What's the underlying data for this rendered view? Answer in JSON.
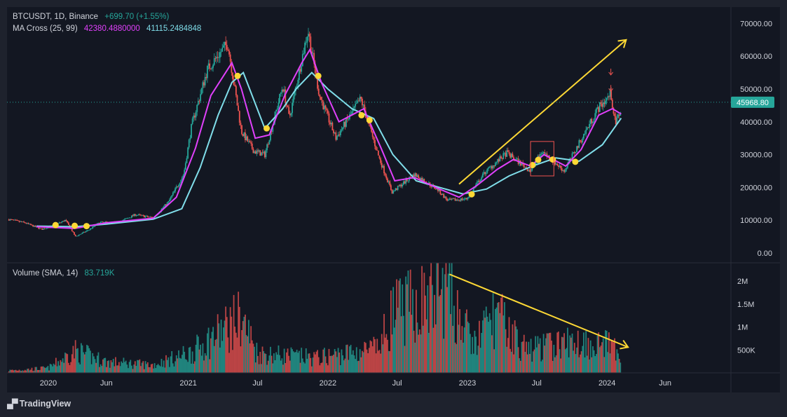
{
  "header": {
    "symbol": "BTCUSDT, 1D, Binance",
    "change": "+699.70 (+1.55%)",
    "ma_label": "MA Cross (25, 99)",
    "ma_fast_value": "42380.4880000",
    "ma_slow_value": "41115.2484848",
    "volume_label": "Volume (SMA, 14)",
    "volume_value": "83.719K"
  },
  "price_axis": {
    "ticks": [
      "70000.00",
      "60000.00",
      "50000.00",
      "40000.00",
      "30000.00",
      "20000.00",
      "10000.00",
      "0.00"
    ],
    "current_price": "45968.80"
  },
  "volume_axis": {
    "ticks": [
      "2M",
      "1.5M",
      "1M",
      "500K"
    ]
  },
  "time_axis": {
    "labels": [
      "2020",
      "Jun",
      "2021",
      "Jul",
      "2022",
      "Jul",
      "2023",
      "Jul",
      "2024",
      "Jun"
    ]
  },
  "brand": {
    "name": "TradingView"
  },
  "colors": {
    "background": "#131722",
    "frame": "#1e222d",
    "text": "#d1d4dc",
    "up": "#26a69a",
    "down": "#ef5350",
    "ma_fast": "#e040fb",
    "ma_slow": "#80deea",
    "annotation": "#fdd835",
    "price_tag": "#26a69a",
    "volume_label": "#26a69a"
  },
  "chart_data": {
    "type": "candlestick",
    "x_range": [
      "2019-09-15",
      "2024-11-20"
    ],
    "y_range": [
      -3000,
      75000
    ],
    "price_path": [
      [
        "2019-09-20",
        10200
      ],
      [
        "2019-11-01",
        9200
      ],
      [
        "2019-12-15",
        7200
      ],
      [
        "2020-01-20",
        8600
      ],
      [
        "2020-02-15",
        10000
      ],
      [
        "2020-03-12",
        5000
      ],
      [
        "2020-04-15",
        7000
      ],
      [
        "2020-05-15",
        9300
      ],
      [
        "2020-07-01",
        9200
      ],
      [
        "2020-08-15",
        11700
      ],
      [
        "2020-10-01",
        10700
      ],
      [
        "2020-11-10",
        15500
      ],
      [
        "2020-12-20",
        24000
      ],
      [
        "2021-01-10",
        39000
      ],
      [
        "2021-02-20",
        56000
      ],
      [
        "2021-04-14",
        64000
      ],
      [
        "2021-05-20",
        37000
      ],
      [
        "2021-06-22",
        31000
      ],
      [
        "2021-07-20",
        30000
      ],
      [
        "2021-09-05",
        51000
      ],
      [
        "2021-09-22",
        41000
      ],
      [
        "2021-11-10",
        68000
      ],
      [
        "2021-12-10",
        48000
      ],
      [
        "2022-01-22",
        35000
      ],
      [
        "2022-03-28",
        47000
      ],
      [
        "2022-05-15",
        29000
      ],
      [
        "2022-06-18",
        18500
      ],
      [
        "2022-08-15",
        24000
      ],
      [
        "2022-10-15",
        19300
      ],
      [
        "2022-11-10",
        16000
      ],
      [
        "2022-12-30",
        16500
      ],
      [
        "2023-02-15",
        24500
      ],
      [
        "2023-04-14",
        30500
      ],
      [
        "2023-06-15",
        25000
      ],
      [
        "2023-07-15",
        31000
      ],
      [
        "2023-09-11",
        25000
      ],
      [
        "2023-10-25",
        34500
      ],
      [
        "2023-12-08",
        44000
      ],
      [
        "2024-01-11",
        48500
      ],
      [
        "2024-01-23",
        39000
      ],
      [
        "2024-02-07",
        44300
      ]
    ],
    "ma_fast_path": [
      [
        "2019-12-01",
        8000
      ],
      [
        "2020-03-10",
        7500
      ],
      [
        "2020-06-01",
        9200
      ],
      [
        "2020-10-01",
        10600
      ],
      [
        "2020-12-01",
        17000
      ],
      [
        "2021-01-20",
        32000
      ],
      [
        "2021-03-01",
        48000
      ],
      [
        "2021-04-25",
        58000
      ],
      [
        "2021-05-20",
        50000
      ],
      [
        "2021-06-25",
        35000
      ],
      [
        "2021-08-01",
        36000
      ],
      [
        "2021-09-10",
        48000
      ],
      [
        "2021-10-25",
        58000
      ],
      [
        "2021-11-15",
        62000
      ],
      [
        "2021-12-15",
        52000
      ],
      [
        "2022-01-30",
        40000
      ],
      [
        "2022-04-05",
        44000
      ],
      [
        "2022-05-20",
        32000
      ],
      [
        "2022-06-25",
        22000
      ],
      [
        "2022-08-15",
        23000
      ],
      [
        "2022-10-20",
        19500
      ],
      [
        "2022-12-10",
        17000
      ],
      [
        "2023-01-25",
        20500
      ],
      [
        "2023-03-20",
        25500
      ],
      [
        "2023-05-01",
        28500
      ],
      [
        "2023-06-15",
        26500
      ],
      [
        "2023-07-20",
        30000
      ],
      [
        "2023-09-15",
        26500
      ],
      [
        "2023-10-25",
        31500
      ],
      [
        "2023-12-10",
        42000
      ],
      [
        "2024-01-15",
        44000
      ],
      [
        "2024-02-07",
        42380
      ]
    ],
    "ma_slow_path": [
      [
        "2019-12-01",
        8200
      ],
      [
        "2020-03-10",
        8000
      ],
      [
        "2020-06-01",
        8800
      ],
      [
        "2020-10-01",
        10300
      ],
      [
        "2020-12-15",
        13500
      ],
      [
        "2021-02-01",
        26000
      ],
      [
        "2021-03-20",
        42000
      ],
      [
        "2021-04-25",
        52000
      ],
      [
        "2021-05-25",
        55000
      ],
      [
        "2021-07-20",
        38000
      ],
      [
        "2021-09-05",
        44000
      ],
      [
        "2021-10-10",
        50000
      ],
      [
        "2021-11-20",
        55000
      ],
      [
        "2022-01-01",
        50000
      ],
      [
        "2022-03-05",
        44000
      ],
      [
        "2022-05-01",
        41000
      ],
      [
        "2022-06-20",
        30000
      ],
      [
        "2022-08-20",
        22000
      ],
      [
        "2022-10-20",
        20000
      ],
      [
        "2022-12-20",
        18000
      ],
      [
        "2023-02-20",
        19500
      ],
      [
        "2023-04-20",
        23500
      ],
      [
        "2023-06-20",
        26500
      ],
      [
        "2023-08-20",
        29000
      ],
      [
        "2023-10-20",
        28000
      ],
      [
        "2023-12-20",
        33000
      ],
      [
        "2024-02-07",
        41115
      ]
    ],
    "cross_points": [
      [
        "2020-01-20",
        8500
      ],
      [
        "2020-03-10",
        8300
      ],
      [
        "2020-04-10",
        8200
      ],
      [
        "2021-05-10",
        54000
      ],
      [
        "2021-07-25",
        38000
      ],
      [
        "2021-12-07",
        54000
      ],
      [
        "2022-03-30",
        42000
      ],
      [
        "2022-04-20",
        40500
      ],
      [
        "2023-01-12",
        17900
      ],
      [
        "2023-06-20",
        26800
      ],
      [
        "2023-07-05",
        28400
      ],
      [
        "2023-08-12",
        28500
      ],
      [
        "2023-10-10",
        27800
      ]
    ],
    "highlight_box": {
      "x": [
        "2023-06-15",
        "2023-08-15"
      ],
      "y": [
        23500,
        34000
      ]
    },
    "down_arrows": [
      [
        "2024-01-11",
        54500
      ],
      [
        "2024-01-11",
        49500
      ]
    ],
    "trendlines": [
      {
        "pane": "price",
        "from": [
          "2022-12-10",
          21000
        ],
        "to": [
          "2024-02-20",
          65000
        ]
      },
      {
        "pane": "volume",
        "from": [
          "2022-11-15",
          2150000
        ],
        "to": [
          "2024-02-25",
          560000
        ]
      }
    ],
    "volume_range": [
      0,
      2400000
    ],
    "volume_path": [
      [
        "2019-09-20",
        60000
      ],
      [
        "2020-01-01",
        120000
      ],
      [
        "2020-03-12",
        560000
      ],
      [
        "2020-06-01",
        280000
      ],
      [
        "2020-10-01",
        200000
      ],
      [
        "2021-01-10",
        520000
      ],
      [
        "2021-05-19",
        1420000
      ],
      [
        "2021-07-01",
        500000
      ],
      [
        "2021-12-01",
        380000
      ],
      [
        "2022-05-15",
        620000
      ],
      [
        "2022-06-18",
        1500000
      ],
      [
        "2022-11-10",
        2100000
      ],
      [
        "2023-01-15",
        700000
      ],
      [
        "2023-03-15",
        1500000
      ],
      [
        "2023-06-01",
        600000
      ],
      [
        "2023-10-20",
        800000
      ],
      [
        "2024-01-11",
        700000
      ],
      [
        "2024-02-07",
        350000
      ]
    ]
  }
}
